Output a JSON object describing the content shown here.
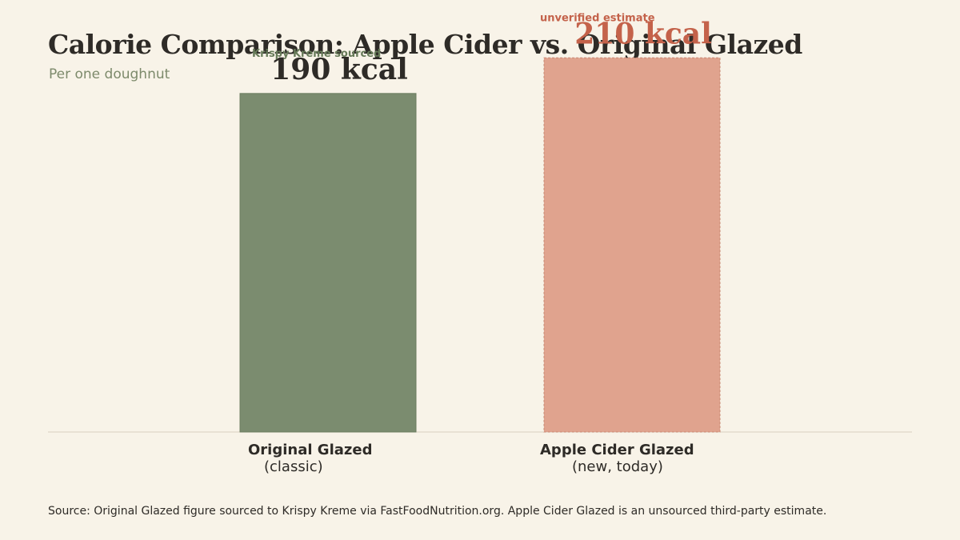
{
  "header": {
    "title": "Calorie Comparison: Apple Cider vs. Original Glazed",
    "subtitle": "Per one doughnut"
  },
  "footer": {
    "source": "Source: Original Glazed figure sourced to Krispy Kreme via FastFoodNutrition.org. Apple Cider Glazed is an unsourced third-party estimate."
  },
  "chart_data": {
    "type": "bar",
    "title": "Calorie Comparison: Apple Cider vs. Original Glazed",
    "subtitle": "Per one doughnut",
    "categories": [
      "Original Glazed",
      "Apple Cider Glazed"
    ],
    "category_sublabels": [
      "(classic)",
      "(new, today)"
    ],
    "values": [
      190,
      210
    ],
    "value_labels": [
      "190 kcal",
      "210 kcal"
    ],
    "annotations": [
      "Krispy Kreme sourced",
      "unverified estimate"
    ],
    "unit": "kcal",
    "ylim": [
      0,
      220
    ],
    "grid": false,
    "colors": {
      "sourced_fill": "#7b8c6f",
      "sourced_text": "#667a58",
      "estimate_fill": "#e0a38e",
      "estimate_text": "#c4624a",
      "baseline": "#d8cfbf"
    },
    "bar_styles": [
      "solid",
      "dashed"
    ]
  }
}
